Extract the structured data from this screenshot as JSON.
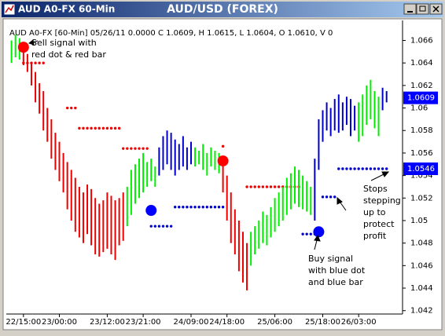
{
  "window": {
    "title": "AUD A0-FX 60-Min"
  },
  "chart_data": {
    "type": "ohlc",
    "title": "AUD/USD (FOREX)",
    "info": "AUD A0-FX [60-Min] 05/26/11  0.0000 C 1.0609, H 1.0615, L 1.0604, O 1.0610, V 0",
    "xlim": [
      -4.3,
      95
    ],
    "ylim": [
      1.0417,
      1.0675
    ],
    "xticks": [
      {
        "value": 0,
        "label": "22/15:00"
      },
      {
        "value": 9,
        "label": "23/00:00"
      },
      {
        "value": 21,
        "label": "23/12:00"
      },
      {
        "value": 30,
        "label": "23/21:00"
      },
      {
        "value": 42,
        "label": "24/09:00"
      },
      {
        "value": 51,
        "label": "24/18:00"
      },
      {
        "value": 63,
        "label": "25/06:00"
      },
      {
        "value": 75,
        "label": "25/18:00"
      },
      {
        "value": 84,
        "label": "26/03:00"
      }
    ],
    "yticks": [
      1.042,
      1.044,
      1.046,
      1.048,
      1.05,
      1.052,
      1.054,
      1.056,
      1.058,
      1.06,
      1.062,
      1.064,
      1.066
    ],
    "bars": [
      {
        "color": "#00ee00",
        "x": [
          -3,
          -2,
          -1
        ],
        "high": [
          1.066,
          1.0665,
          1.0662
        ],
        "low": [
          1.064,
          1.0645,
          1.0643
        ]
      },
      {
        "color": "#ee0000",
        "x": [
          0,
          1,
          2,
          3,
          4,
          5,
          6,
          7,
          8,
          9,
          10,
          11,
          12,
          13,
          14,
          15,
          16,
          17,
          18,
          19,
          20,
          21,
          22,
          23,
          24,
          25
        ],
        "high": [
          1.065,
          1.0648,
          1.064,
          1.0632,
          1.0622,
          1.0615,
          1.06,
          1.059,
          1.0578,
          1.057,
          1.056,
          1.0552,
          1.0545,
          1.0538,
          1.053,
          1.0525,
          1.0532,
          1.0528,
          1.052,
          1.0515,
          1.0518,
          1.0525,
          1.0522,
          1.0518,
          1.052,
          1.0525
        ],
        "low": [
          1.0638,
          1.0632,
          1.062,
          1.0605,
          1.0595,
          1.058,
          1.057,
          1.0555,
          1.0545,
          1.0535,
          1.0525,
          1.051,
          1.05,
          1.049,
          1.0485,
          1.048,
          1.0488,
          1.0478,
          1.047,
          1.0468,
          1.0472,
          1.0475,
          1.047,
          1.0465,
          1.0478,
          1.0482
        ]
      },
      {
        "color": "#00ee00",
        "x": [
          26,
          27,
          28,
          29,
          30,
          31,
          32,
          33
        ],
        "high": [
          1.053,
          1.0545,
          1.055,
          1.0555,
          1.056,
          1.0552,
          1.0555,
          1.0548
        ],
        "low": [
          1.0495,
          1.0505,
          1.0515,
          1.052,
          1.0525,
          1.053,
          1.0535,
          1.053
        ]
      },
      {
        "color": "#0000cc",
        "x": [
          34,
          35,
          36,
          37,
          38,
          39,
          40,
          41,
          42
        ],
        "high": [
          1.0565,
          1.0575,
          1.058,
          1.0578,
          1.0572,
          1.0568,
          1.0575,
          1.0565,
          1.057
        ],
        "low": [
          1.054,
          1.0545,
          1.055,
          1.0545,
          1.054,
          1.0545,
          1.0548,
          1.0545,
          1.055
        ]
      },
      {
        "color": "#00ee00",
        "x": [
          43,
          44,
          45,
          46,
          47,
          48,
          49
        ],
        "high": [
          1.0565,
          1.0562,
          1.0568,
          1.056,
          1.0565,
          1.0562,
          1.056
        ],
        "low": [
          1.0548,
          1.055,
          1.0545,
          1.054,
          1.0548,
          1.0545,
          1.0542
        ]
      },
      {
        "color": "#ee0000",
        "x": [
          50,
          51,
          52,
          53,
          54,
          55,
          56
        ],
        "high": [
          1.0555,
          1.054,
          1.0525,
          1.051,
          1.05,
          1.049,
          1.048
        ],
        "low": [
          1.0525,
          1.05,
          1.048,
          1.047,
          1.0455,
          1.0445,
          1.0438
        ]
      },
      {
        "color": "#00ee00",
        "x": [
          57,
          58,
          59,
          60,
          61,
          62,
          63,
          64,
          65,
          66,
          67,
          68,
          69,
          70,
          71,
          72
        ],
        "high": [
          1.049,
          1.0495,
          1.05,
          1.0508,
          1.0505,
          1.0512,
          1.052,
          1.0525,
          1.053,
          1.0538,
          1.0542,
          1.0548,
          1.0545,
          1.054,
          1.0535,
          1.053
        ],
        "low": [
          1.046,
          1.047,
          1.0475,
          1.048,
          1.0478,
          1.0485,
          1.049,
          1.0495,
          1.05,
          1.0505,
          1.051,
          1.0515,
          1.0512,
          1.051,
          1.0508,
          1.0505
        ]
      },
      {
        "color": "#0000cc",
        "x": [
          73,
          74,
          75,
          76,
          77,
          78,
          79,
          80,
          81,
          82,
          83
        ],
        "high": [
          1.0555,
          1.059,
          1.0598,
          1.0605,
          1.06,
          1.0608,
          1.0612,
          1.0605,
          1.061,
          1.0608,
          1.0602
        ],
        "low": [
          1.05,
          1.0545,
          1.057,
          1.058,
          1.0575,
          1.058,
          1.0578,
          1.058,
          1.0585,
          1.0575,
          1.058
        ]
      },
      {
        "color": "#00ee00",
        "x": [
          84,
          85,
          86,
          87,
          88,
          89
        ],
        "high": [
          1.0605,
          1.0612,
          1.062,
          1.0625,
          1.0615,
          1.061
        ],
        "low": [
          1.057,
          1.0575,
          1.0585,
          1.059,
          1.0582,
          1.0575
        ]
      },
      {
        "color": "#0000cc",
        "x": [
          90,
          91
        ],
        "high": [
          1.0618,
          1.0615
        ],
        "low": [
          1.0598,
          1.0605
        ]
      }
    ],
    "dots": [
      {
        "color": "#ee0000",
        "x": [
          0,
          1,
          2,
          3,
          4,
          5,
          11,
          12,
          13,
          14,
          15,
          16,
          17,
          18,
          19,
          20,
          21,
          22,
          23,
          24,
          25,
          26,
          27,
          28,
          29,
          30,
          31,
          50,
          56,
          57,
          58,
          59,
          60,
          61,
          62,
          63,
          64,
          65,
          66,
          67,
          68,
          69
        ],
        "values": [
          1.064,
          1.064,
          1.064,
          1.064,
          1.064,
          1.064,
          1.06,
          1.06,
          1.06,
          1.0582,
          1.0582,
          1.0582,
          1.0582,
          1.0582,
          1.0582,
          1.0582,
          1.0582,
          1.0582,
          1.0582,
          1.0582,
          1.0564,
          1.0564,
          1.0564,
          1.0564,
          1.0564,
          1.0564,
          1.0564,
          1.0566,
          1.053,
          1.053,
          1.053,
          1.053,
          1.053,
          1.053,
          1.053,
          1.053,
          1.053,
          1.053,
          1.053,
          1.053,
          1.053,
          1.053
        ]
      },
      {
        "color": "#0000cc",
        "x": [
          32,
          33,
          34,
          35,
          36,
          37,
          38,
          39,
          40,
          41,
          42,
          43,
          44,
          45,
          46,
          47,
          48,
          49,
          50,
          70,
          71,
          72,
          73,
          75,
          76,
          77,
          78,
          79,
          80,
          81,
          82,
          83,
          84,
          85,
          86,
          87,
          88,
          89,
          90,
          91
        ],
        "values": [
          1.0495,
          1.0495,
          1.0495,
          1.0495,
          1.0495,
          1.0495,
          1.0512,
          1.0512,
          1.0512,
          1.0512,
          1.0512,
          1.0512,
          1.0512,
          1.0512,
          1.0512,
          1.0512,
          1.0512,
          1.0512,
          1.0512,
          1.0488,
          1.0488,
          1.0488,
          1.0488,
          1.0521,
          1.0521,
          1.0521,
          1.0521,
          1.0546,
          1.0546,
          1.0546,
          1.0546,
          1.0546,
          1.0546,
          1.0546,
          1.0546,
          1.0546,
          1.0546,
          1.0546,
          1.0546,
          1.0546
        ]
      }
    ],
    "signals": {
      "x": [
        0,
        50,
        32,
        74
      ],
      "values": [
        1.0654,
        1.0553,
        1.0509,
        1.049
      ],
      "colors": [
        "#ff0000",
        "#ff0000",
        "#0000ff",
        "#0000ff"
      ]
    },
    "markers": [
      {
        "value": 1.0609,
        "color": "#0000ff"
      },
      {
        "value": 1.0546,
        "color": "#0000ff"
      }
    ],
    "annotations": [
      {
        "lines": [
          "Sell signal with",
          "red dot & red bar"
        ]
      },
      {
        "lines": [
          "Buy signal",
          "with blue dot",
          "and blue bar"
        ]
      },
      {
        "lines": [
          "Stops",
          "stepping",
          "up to",
          "protect",
          "profit"
        ]
      }
    ]
  }
}
